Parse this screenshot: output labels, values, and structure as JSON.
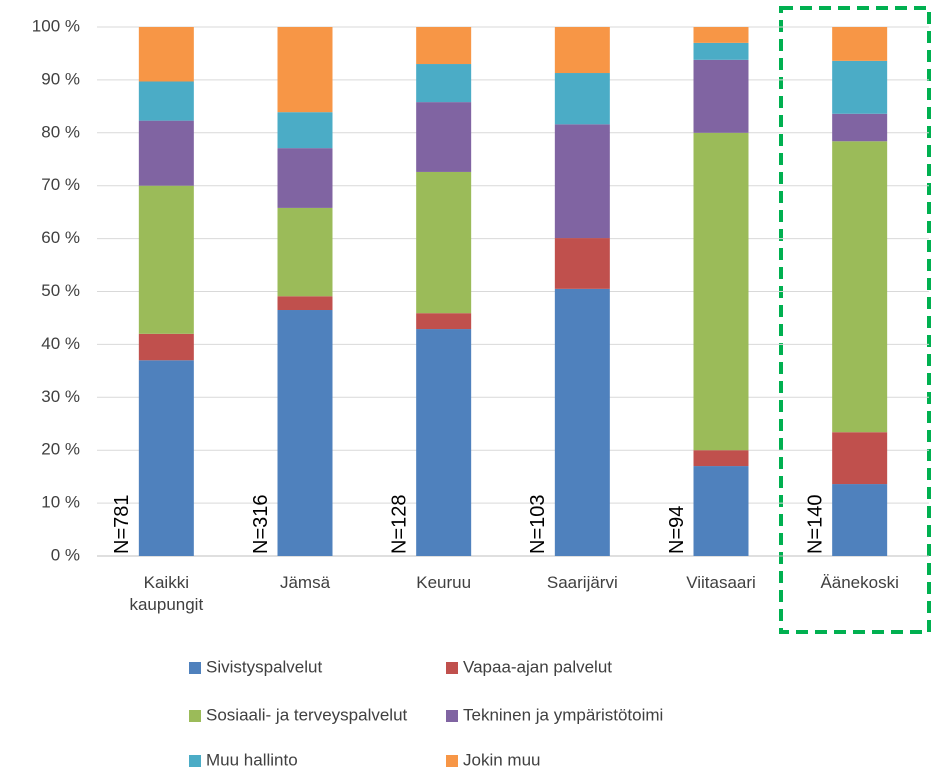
{
  "chart_data": {
    "type": "stacked_bar",
    "categories": [
      "Kaikki kaupungit",
      "Jämsä",
      "Keuruu",
      "Saarijärvi",
      "Viitasaari",
      "Äänekoski"
    ],
    "series": [
      {
        "name": "Sivistyspalvelut",
        "color": "#4f81bd",
        "values": [
          37,
          46.5,
          42.9,
          50.5,
          17,
          13.6
        ]
      },
      {
        "name": "Vapaa-ajan palvelut",
        "color": "#c0504d",
        "values": [
          5,
          2.6,
          3,
          9.6,
          3,
          9.8
        ]
      },
      {
        "name": "Sosiaali- ja terveyspalvelut",
        "color": "#9bbb59",
        "values": [
          28,
          16.7,
          26.7,
          0,
          60,
          55
        ]
      },
      {
        "name": "Tekninen ja ympäristötoimi",
        "color": "#8064a2",
        "values": [
          12.3,
          11.3,
          13.2,
          21.5,
          13.8,
          5.2
        ]
      },
      {
        "name": "Muu hallinto",
        "color": "#4bacc6",
        "values": [
          7.4,
          6.8,
          7.2,
          9.7,
          3.2,
          10
        ]
      },
      {
        "name": "Jokin muu",
        "color": "#f79646",
        "values": [
          10.3,
          16.1,
          7,
          8.7,
          3,
          6.4
        ]
      }
    ],
    "annotations": [
      "N=781",
      "N=316",
      "N=128",
      "N=103",
      "N=94",
      "N=140"
    ],
    "ylim": [
      0,
      100
    ],
    "yticks": [
      {
        "value": 0,
        "label": "0 %"
      },
      {
        "value": 10,
        "label": "10 %"
      },
      {
        "value": 20,
        "label": "20 %"
      },
      {
        "value": 30,
        "label": "30 %"
      },
      {
        "value": 40,
        "label": "40 %"
      },
      {
        "value": 50,
        "label": "50 %"
      },
      {
        "value": 60,
        "label": "60 %"
      },
      {
        "value": 70,
        "label": "70 %"
      },
      {
        "value": 80,
        "label": "80 %"
      },
      {
        "value": 90,
        "label": "90 %"
      },
      {
        "value": 100,
        "label": "100 %"
      }
    ],
    "grid": true
  }
}
